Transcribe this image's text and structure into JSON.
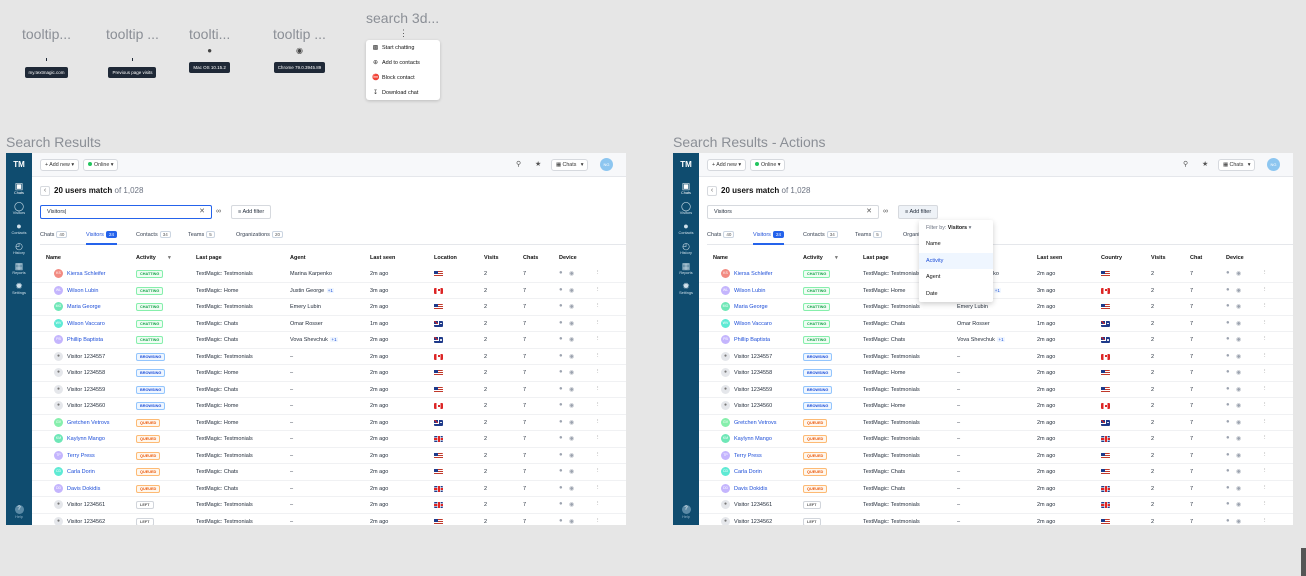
{
  "tooltips": [
    {
      "title": "tooltip...",
      "text": "my.textmagic.com",
      "icon": ""
    },
    {
      "title": "tooltip ...",
      "text": "Previous page visits",
      "icon": ""
    },
    {
      "title": "toolti...",
      "text": "Mac OS 10.15.2",
      "icon": "apple-icon"
    },
    {
      "title": "tooltip ...",
      "text": "Chrome 79.0.3945.89",
      "icon": "chrome-icon"
    }
  ],
  "context_menu": {
    "title": "search 3d...",
    "items": [
      {
        "label": "Start chatting",
        "icon": "chat-icon"
      },
      {
        "label": "Add to contacts",
        "icon": "add-contact-icon"
      },
      {
        "label": "Block contact",
        "icon": "block-icon"
      },
      {
        "label": "Download chat",
        "icon": "download-icon"
      }
    ]
  },
  "sections": [
    {
      "title": "Search Results"
    },
    {
      "title": "Search Results - Actions"
    }
  ],
  "sidebar": {
    "logo": "TM",
    "items": [
      {
        "label": "Chats",
        "icon": "chat-icon"
      },
      {
        "label": "Visitors",
        "icon": "globe-icon"
      },
      {
        "label": "Contacts",
        "icon": "person-icon"
      },
      {
        "label": "History",
        "icon": "history-icon"
      },
      {
        "label": "Reports",
        "icon": "reports-icon"
      },
      {
        "label": "Settings",
        "icon": "gear-icon"
      }
    ],
    "help": "Help"
  },
  "topbar": {
    "add_new": "+ Add new",
    "status": "Online",
    "chats_label": "Chats",
    "avatar_initials": "NG",
    "search_icon": "search-icon",
    "notify_icon": "megaphone-icon"
  },
  "header": {
    "count": "20 users match",
    "of": "of 1,028",
    "search_value_1": "Visitors|",
    "search_value_2": "Visitors",
    "add_filter": "Add filter"
  },
  "tabs": [
    {
      "label": "Chats",
      "count": "40"
    },
    {
      "label": "Visitors",
      "count": "24"
    },
    {
      "label": "Contacts",
      "count": "34"
    },
    {
      "label": "Teams",
      "count": "5"
    },
    {
      "label": "Organizations",
      "count": "20"
    }
  ],
  "columns_1": [
    "Name",
    "Activity",
    "Last page",
    "Agent",
    "Last seen",
    "Location",
    "Visits",
    "Chats",
    "Device"
  ],
  "columns_2": [
    "Name",
    "Activity",
    "Last page",
    "Agent",
    "Last seen",
    "Country",
    "Visits",
    "Chat",
    "Device"
  ],
  "rows": [
    {
      "initials": "KS",
      "color": "#f28b82",
      "name": "Kiersa Schleifer",
      "activity": "CHATTING",
      "page": "TextMagic: Testmonials",
      "page2": "TextMagic: Testmonials",
      "agent": "Marina Karpenko",
      "agent_extra": "",
      "seen": "2m ago",
      "flag": "us",
      "visits": "2",
      "chats": "7"
    },
    {
      "initials": "WL",
      "color": "#c4b5fd",
      "name": "Wilson Lubin",
      "activity": "CHATTING",
      "page": "TextMagic: Home",
      "page2": "TextMagic: Home",
      "agent": "Justin George",
      "agent_extra": "+1",
      "seen": "3m ago",
      "flag": "ca",
      "visits": "2",
      "chats": "7"
    },
    {
      "initials": "MG",
      "color": "#6ee7b7",
      "name": "Maria George",
      "activity": "CHATTING",
      "page": "TextMagic: Testmonials",
      "page2": "TextMagic: Testmonials",
      "agent": "Emery Lubin",
      "agent_extra": "",
      "seen": "2m ago",
      "flag": "us",
      "visits": "2",
      "chats": "7"
    },
    {
      "initials": "WV",
      "color": "#5eead4",
      "name": "Wilson Vaccaro",
      "activity": "CHATTING",
      "page": "TextMagic: Chats",
      "page2": "TextMagic: Chats",
      "agent": "Omar Rosser",
      "agent_extra": "",
      "seen": "1m ago",
      "flag": "au",
      "visits": "2",
      "chats": "7"
    },
    {
      "initials": "PB",
      "color": "#c4b5fd",
      "name": "Phillip Baptista",
      "activity": "CHATTING",
      "page": "TextMagic: Chats",
      "page2": "TextMagic: Chats",
      "agent": "Vova Shevchuk",
      "agent_extra": "+1",
      "seen": "2m ago",
      "flag": "au",
      "visits": "2",
      "chats": "7"
    },
    {
      "initials": "",
      "color": "",
      "name": "Visitor 1234557",
      "activity": "BROWSING",
      "page": "TextMagic: Testmonials",
      "page2": "TextMagic: Testmonials",
      "agent": "–",
      "agent_extra": "",
      "seen": "2m ago",
      "flag": "ca",
      "visits": "2",
      "chats": "7"
    },
    {
      "initials": "",
      "color": "",
      "name": "Visitor 1234558",
      "activity": "BROWSING",
      "page": "TextMagic: Home",
      "page2": "TextMagic: Home",
      "agent": "–",
      "agent_extra": "",
      "seen": "2m ago",
      "flag": "us",
      "visits": "2",
      "chats": "7"
    },
    {
      "initials": "",
      "color": "",
      "name": "Visitor 1234559",
      "activity": "BROWSING",
      "page": "TextMagic: Chats",
      "page2": "TextMagic: Testmonials",
      "agent": "–",
      "agent_extra": "",
      "seen": "2m ago",
      "flag": "us",
      "visits": "2",
      "chats": "7"
    },
    {
      "initials": "",
      "color": "",
      "name": "Visitor 1234560",
      "activity": "BROWSING",
      "page": "TextMagic: Home",
      "page2": "TextMagic: Home",
      "agent": "–",
      "agent_extra": "",
      "seen": "2m ago",
      "flag": "ca",
      "visits": "2",
      "chats": "7"
    },
    {
      "initials": "GV",
      "color": "#86efac",
      "name": "Gretchen Vetrovs",
      "activity": "QUEUED",
      "page": "TextMagic: Home",
      "page2": "TextMagic: Testmonials",
      "agent": "–",
      "agent_extra": "",
      "seen": "2m ago",
      "flag": "au",
      "visits": "2",
      "chats": "7"
    },
    {
      "initials": "KM",
      "color": "#6ee7b7",
      "name": "Kaylynn Mango",
      "activity": "QUEUED",
      "page": "TextMagic: Testmonials",
      "page2": "TextMagic: Testmonials",
      "agent": "–",
      "agent_extra": "",
      "seen": "2m ago",
      "flag": "gb",
      "visits": "2",
      "chats": "7"
    },
    {
      "initials": "TP",
      "color": "#c4b5fd",
      "name": "Terry Press",
      "activity": "QUEUED",
      "page": "TextMagic: Testmonials",
      "page2": "TextMagic: Testmonials",
      "agent": "–",
      "agent_extra": "",
      "seen": "2m ago",
      "flag": "us",
      "visits": "2",
      "chats": "7"
    },
    {
      "initials": "CD",
      "color": "#5eead4",
      "name": "Carla Dorin",
      "activity": "QUEUED",
      "page": "TextMagic: Chats",
      "page2": "TextMagic: Chats",
      "agent": "–",
      "agent_extra": "",
      "seen": "2m ago",
      "flag": "us",
      "visits": "2",
      "chats": "7"
    },
    {
      "initials": "DD",
      "color": "#c4b5fd",
      "name": "Davis Dokidis",
      "activity": "QUEUED",
      "page": "TextMagic: Chats",
      "page2": "TextMagic: Chats",
      "agent": "–",
      "agent_extra": "",
      "seen": "2m ago",
      "flag": "gb",
      "visits": "2",
      "chats": "7"
    },
    {
      "initials": "",
      "color": "",
      "name": "Visitor 1234561",
      "activity": "LEFT",
      "page": "TextMagic: Testmonials",
      "page2": "TextMagic: Testmonials",
      "agent": "–",
      "agent_extra": "",
      "seen": "2m ago",
      "flag": "gb",
      "visits": "2",
      "chats": "7"
    },
    {
      "initials": "",
      "color": "",
      "name": "Visitor 1234562",
      "activity": "LEFT",
      "page": "TextMagic: Testmonials",
      "page2": "TextMagic: Testmonials",
      "agent": "–",
      "agent_extra": "",
      "seen": "2m ago",
      "flag": "us",
      "visits": "2",
      "chats": "7"
    }
  ],
  "filter_dropdown": {
    "header_prefix": "Filter by:",
    "header_value": "Visitors",
    "items": [
      "Name",
      "Activity",
      "Agent",
      "Date"
    ],
    "selected": "Activity"
  }
}
